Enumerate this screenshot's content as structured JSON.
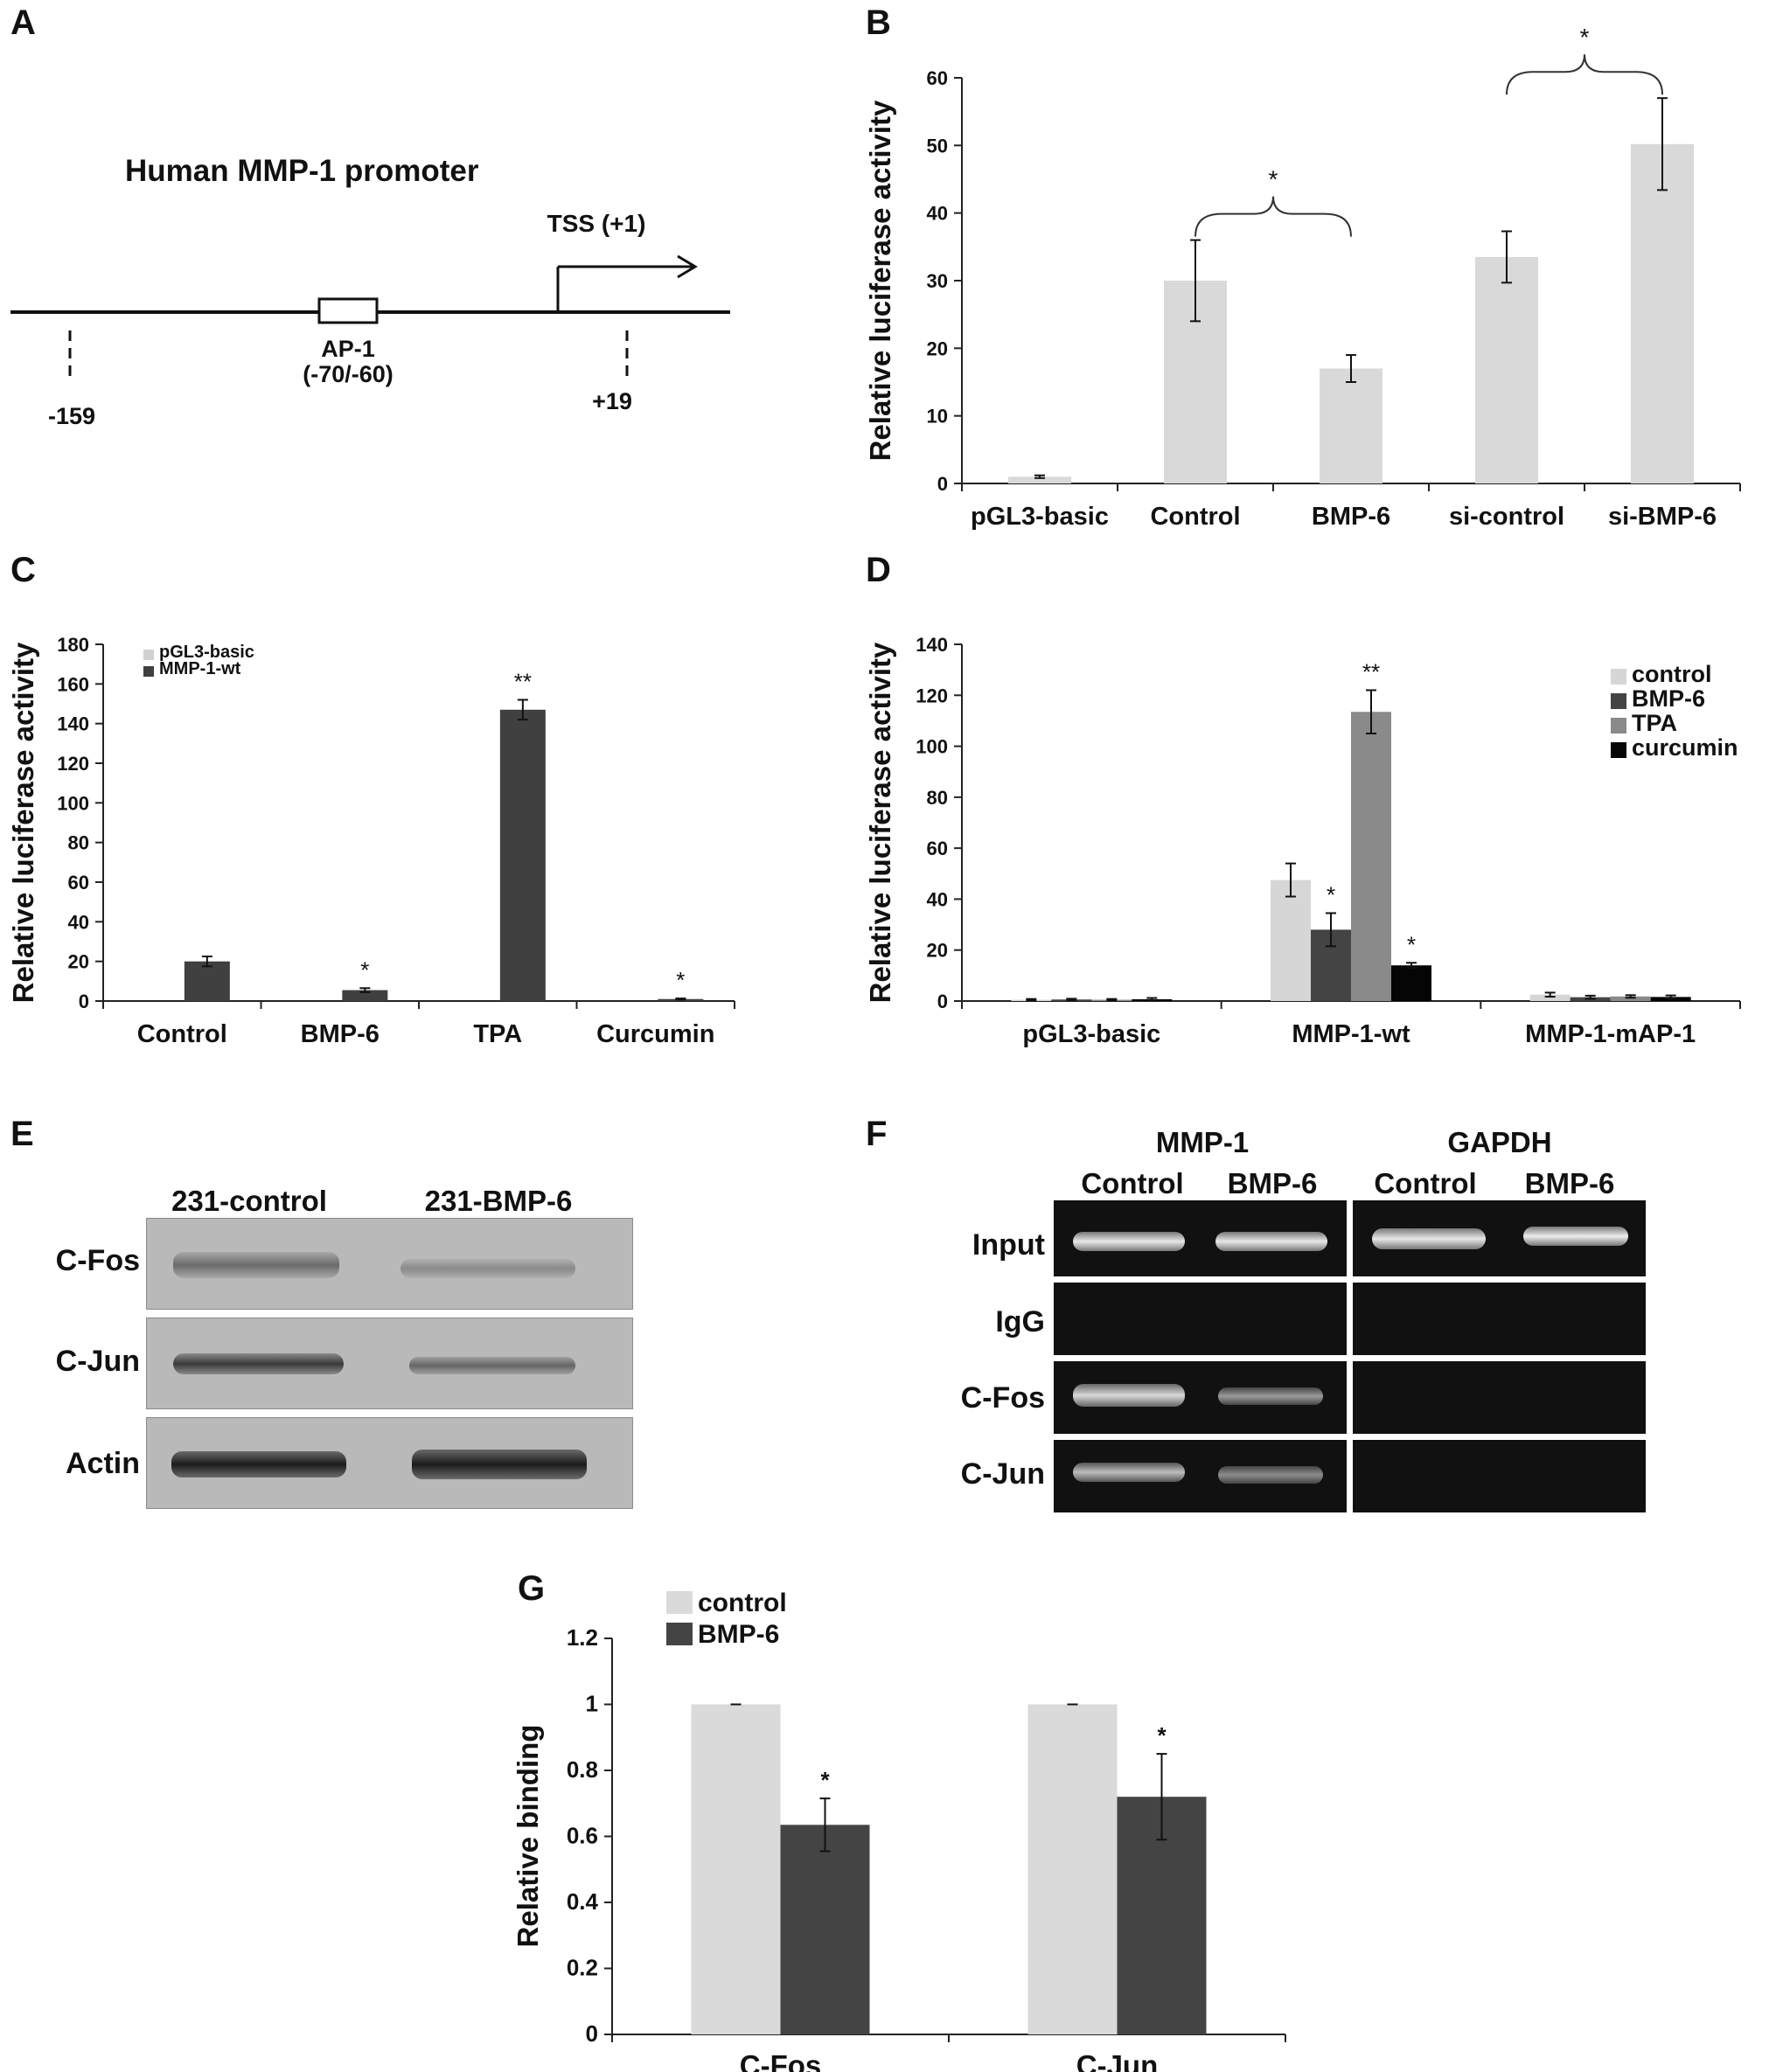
{
  "panel_labels": {
    "A": "A",
    "B": "B",
    "C": "C",
    "D": "D",
    "E": "E",
    "F": "F",
    "G": "G"
  },
  "panel_a": {
    "title": "Human MMP-1 promoter",
    "tss": "TSS (+1)",
    "ap1_line1": "AP-1",
    "ap1_line2": "(-70/-60)",
    "pos_left": "-159",
    "pos_right": "+19"
  },
  "panel_e": {
    "columns": [
      "231-control",
      "231-BMP-6"
    ],
    "rows": [
      "C-Fos",
      "C-Jun",
      "Actin"
    ]
  },
  "panel_f": {
    "groups": [
      "MMP-1",
      "GAPDH"
    ],
    "columns": [
      "Control",
      "BMP-6",
      "Control",
      "BMP-6"
    ],
    "rows": [
      "Input",
      "IgG",
      "C-Fos",
      "C-Jun"
    ]
  },
  "chart_data": [
    {
      "id": "B",
      "type": "bar",
      "ylabel": "Relative luciferase activity",
      "ylim": [
        0,
        60
      ],
      "yticks": [
        "0",
        "10",
        "20",
        "30",
        "40",
        "50",
        "60"
      ],
      "categories": [
        "pGL3-basic",
        "Control",
        "BMP-6",
        "si-control",
        "si-BMP-6"
      ],
      "series": [
        {
          "values": [
            1,
            30,
            17,
            33.5,
            50.2
          ],
          "errors": [
            0.2,
            6,
            2,
            3.8,
            6.8
          ],
          "color": "#d9d9d9"
        }
      ],
      "significance": [
        {
          "between": [
            1,
            2
          ],
          "label": "*"
        },
        {
          "between": [
            3,
            4
          ],
          "label": "*"
        }
      ]
    },
    {
      "id": "C",
      "type": "bar",
      "ylabel": "Relative luciferase activity",
      "ylim": [
        0,
        180
      ],
      "yticks": [
        "0",
        "20",
        "40",
        "60",
        "80",
        "100",
        "120",
        "140",
        "160",
        "180"
      ],
      "categories": [
        "Control",
        "BMP-6",
        "TPA",
        "Curcumin"
      ],
      "legend": "top-left",
      "series": [
        {
          "name": "pGL3-basic",
          "values": [
            0,
            0,
            0,
            0
          ],
          "errors": [
            0,
            0,
            0,
            0
          ],
          "color": "#d0d0d0"
        },
        {
          "name": "MMP-1-wt",
          "values": [
            20,
            5.5,
            147,
            1
          ],
          "errors": [
            2.5,
            1,
            5,
            0.3
          ],
          "color": "#404040"
        }
      ],
      "annotations": [
        {
          "series": 1,
          "index": 1,
          "label": "*"
        },
        {
          "series": 1,
          "index": 2,
          "label": "**"
        },
        {
          "series": 1,
          "index": 3,
          "label": "*"
        }
      ]
    },
    {
      "id": "D",
      "type": "bar",
      "ylabel": "Relative luciferase activity",
      "ylim": [
        0,
        140
      ],
      "yticks": [
        "0",
        "20",
        "40",
        "60",
        "80",
        "100",
        "120",
        "140"
      ],
      "categories": [
        "pGL3-basic",
        "MMP-1-wt",
        "MMP-1-mAP-1"
      ],
      "legend": "right",
      "series": [
        {
          "name": "control",
          "values": [
            0.5,
            47.5,
            2.5
          ],
          "errors": [
            0.3,
            6.5,
            0.8
          ],
          "color": "#d6d6d6"
        },
        {
          "name": "BMP-6",
          "values": [
            0.6,
            28,
            1.5
          ],
          "errors": [
            0.3,
            6.5,
            0.6
          ],
          "color": "#444444"
        },
        {
          "name": "TPA",
          "values": [
            0.5,
            113.5,
            1.8
          ],
          "errors": [
            0.3,
            8.5,
            0.5
          ],
          "color": "#8a8a8a"
        },
        {
          "name": "curcumin",
          "values": [
            0.7,
            14,
            1.6
          ],
          "errors": [
            0.5,
            1,
            0.6
          ],
          "color": "#050505"
        }
      ],
      "annotations": [
        {
          "series": 1,
          "index": 1,
          "label": "*"
        },
        {
          "series": 2,
          "index": 1,
          "label": "**"
        },
        {
          "series": 3,
          "index": 1,
          "label": "*"
        }
      ]
    },
    {
      "id": "G",
      "type": "bar",
      "ylabel": "Relative binding",
      "ylim": [
        0,
        1.2
      ],
      "yticks": [
        "0",
        "0.2",
        "0.4",
        "0.6",
        "0.8",
        "1",
        "1.2"
      ],
      "categories": [
        "C-Fos",
        "C-Jun"
      ],
      "legend": "top-left",
      "series": [
        {
          "name": "control",
          "values": [
            1,
            1
          ],
          "errors": [
            0,
            0
          ],
          "color": "#dadada"
        },
        {
          "name": "BMP-6",
          "values": [
            0.635,
            0.72
          ],
          "errors": [
            0.08,
            0.13
          ],
          "color": "#444444"
        }
      ],
      "annotations": [
        {
          "series": 1,
          "index": 0,
          "label": "*"
        },
        {
          "series": 1,
          "index": 1,
          "label": "*"
        }
      ]
    }
  ]
}
